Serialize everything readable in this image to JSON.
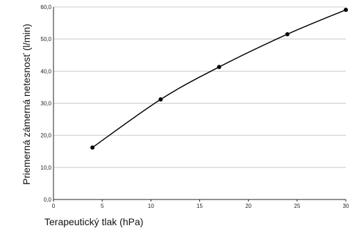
{
  "chart_data": {
    "type": "line",
    "title": "",
    "xlabel": "Terapeutický tlak (hPa)",
    "ylabel": "Priemerná zámerná netesnosť (l/min)",
    "xlim": [
      0,
      30
    ],
    "ylim": [
      0,
      60
    ],
    "x_ticks": [
      "0",
      "5",
      "10",
      "15",
      "20",
      "25",
      "30"
    ],
    "y_ticks": [
      "0,0",
      "10,0",
      "20,0",
      "30,0",
      "40,0",
      "50,0",
      "60,0"
    ],
    "grid": "horizontal",
    "series": [
      {
        "x": [
          4,
          11,
          17,
          24,
          30
        ],
        "y": [
          16.2,
          31.2,
          41.3,
          51.5,
          59.1
        ]
      }
    ],
    "colors": {
      "line": "#000000",
      "grid": "#c8c8c8"
    }
  }
}
